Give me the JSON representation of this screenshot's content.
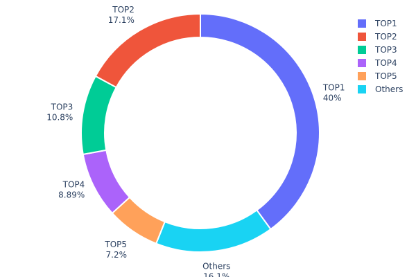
{
  "chart_data": {
    "type": "pie",
    "hole": true,
    "labels": [
      "TOP1",
      "TOP2",
      "TOP3",
      "TOP4",
      "TOP5",
      "Others"
    ],
    "values": [
      40,
      17.1,
      10.8,
      8.89,
      7.2,
      16.1
    ],
    "value_labels": [
      "40%",
      "17.1%",
      "10.8%",
      "8.89%",
      "7.2%",
      "16.1%"
    ],
    "colors": [
      "#636efa",
      "#ef553b",
      "#00cc96",
      "#ab63fa",
      "#ffa15a",
      "#19d3f3"
    ],
    "slice_order_clockwise": [
      "TOP1",
      "Others",
      "TOP5",
      "TOP4",
      "TOP3",
      "TOP2"
    ],
    "legend_position": "top-right"
  }
}
